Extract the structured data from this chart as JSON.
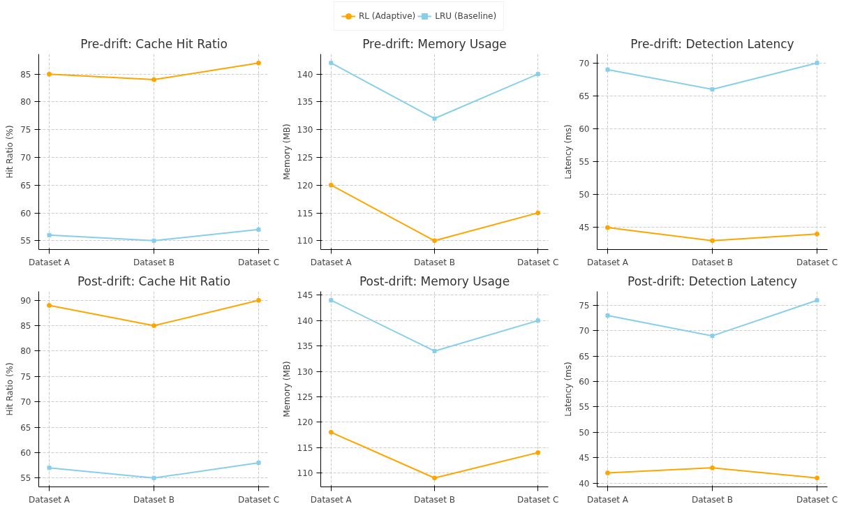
{
  "chart_data": [
    {
      "type": "line",
      "title": "Pre-drift: Cache Hit Ratio",
      "ylabel": "Hit Ratio (%)",
      "categories": [
        "Dataset A",
        "Dataset B",
        "Dataset C"
      ],
      "ylim": [
        53.4,
        88.6
      ],
      "yticks": [
        55,
        60,
        65,
        70,
        75,
        80,
        85
      ],
      "grid": true,
      "legend": "top",
      "series": [
        {
          "name": "RL (Adaptive)",
          "color": "#ffa500",
          "marker": "circle",
          "values": [
            85,
            84,
            87
          ]
        },
        {
          "name": "LRU (Baseline)",
          "color": "#87ceeb",
          "marker": "square",
          "values": [
            56,
            55,
            57
          ]
        }
      ]
    },
    {
      "type": "line",
      "title": "Pre-drift: Memory Usage",
      "ylabel": "Memory (MB)",
      "categories": [
        "Dataset A",
        "Dataset B",
        "Dataset C"
      ],
      "ylim": [
        108.4,
        143.6
      ],
      "yticks": [
        110,
        115,
        120,
        125,
        130,
        135,
        140
      ],
      "grid": true,
      "series": [
        {
          "color": "#ffa500",
          "marker": "circle",
          "values": [
            120,
            110,
            115
          ]
        },
        {
          "color": "#87ceeb",
          "marker": "square",
          "values": [
            142,
            132,
            140
          ]
        }
      ]
    },
    {
      "type": "line",
      "title": "Pre-drift: Detection Latency",
      "ylabel": "Latency (ms)",
      "categories": [
        "Dataset A",
        "Dataset B",
        "Dataset C"
      ],
      "ylim": [
        41.65,
        71.35
      ],
      "yticks": [
        45,
        50,
        55,
        60,
        65,
        70
      ],
      "grid": true,
      "series": [
        {
          "color": "#ffa500",
          "marker": "circle",
          "values": [
            45,
            43,
            44
          ]
        },
        {
          "color": "#87ceeb",
          "marker": "square",
          "values": [
            69,
            66,
            70
          ]
        }
      ]
    },
    {
      "type": "line",
      "title": "Post-drift: Cache Hit Ratio",
      "ylabel": "Hit Ratio (%)",
      "categories": [
        "Dataset A",
        "Dataset B",
        "Dataset C"
      ],
      "ylim": [
        53.25,
        91.75
      ],
      "yticks": [
        55,
        60,
        65,
        70,
        75,
        80,
        85,
        90
      ],
      "grid": true,
      "series": [
        {
          "color": "#ffa500",
          "marker": "circle",
          "values": [
            89,
            85,
            90
          ]
        },
        {
          "color": "#87ceeb",
          "marker": "square",
          "values": [
            57,
            55,
            58
          ]
        }
      ]
    },
    {
      "type": "line",
      "title": "Post-drift: Memory Usage",
      "ylabel": "Memory (MB)",
      "categories": [
        "Dataset A",
        "Dataset B",
        "Dataset C"
      ],
      "ylim": [
        107.25,
        145.75
      ],
      "yticks": [
        110,
        115,
        120,
        125,
        130,
        135,
        140,
        145
      ],
      "grid": true,
      "series": [
        {
          "color": "#ffa500",
          "marker": "circle",
          "values": [
            118,
            109,
            114
          ]
        },
        {
          "color": "#87ceeb",
          "marker": "square",
          "values": [
            144,
            134,
            140
          ]
        }
      ]
    },
    {
      "type": "line",
      "title": "Post-drift: Detection Latency",
      "ylabel": "Latency (ms)",
      "categories": [
        "Dataset A",
        "Dataset B",
        "Dataset C"
      ],
      "ylim": [
        39.25,
        77.75
      ],
      "yticks": [
        40,
        45,
        50,
        55,
        60,
        65,
        70,
        75
      ],
      "grid": true,
      "series": [
        {
          "color": "#ffa500",
          "marker": "circle",
          "values": [
            42,
            43,
            41
          ]
        },
        {
          "color": "#87ceeb",
          "marker": "square",
          "values": [
            73,
            69,
            76
          ]
        }
      ]
    }
  ]
}
